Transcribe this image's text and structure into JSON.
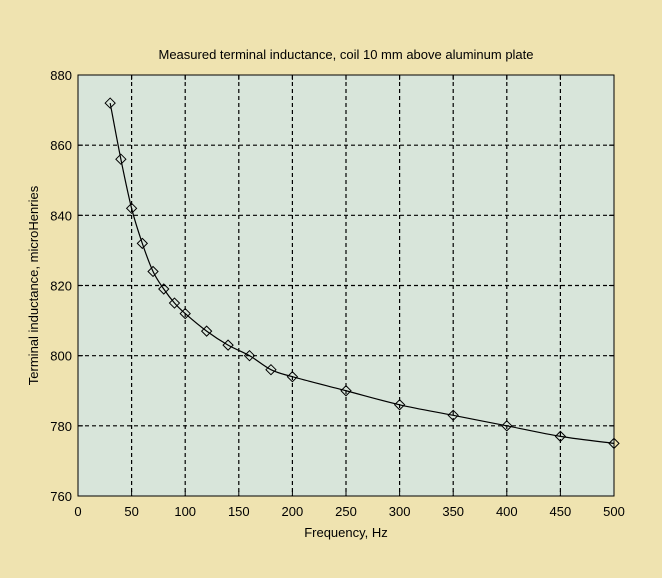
{
  "colors": {
    "figure_background": "#efe3b0",
    "plot_background": "#d8e5da",
    "line": "#000000",
    "grid": "#000000"
  },
  "chart_data": {
    "type": "line",
    "title": "Measured terminal inductance, coil 10 mm above aluminum plate",
    "xlabel": "Frequency, Hz",
    "ylabel": "Terminal inductance, microHenries",
    "xlim": [
      0,
      500
    ],
    "ylim": [
      760,
      880
    ],
    "xticks": [
      0,
      50,
      100,
      150,
      200,
      250,
      300,
      350,
      400,
      450,
      500
    ],
    "yticks": [
      760,
      780,
      800,
      820,
      840,
      860,
      880
    ],
    "grid": true,
    "grid_style": "dashed",
    "marker": "diamond",
    "series": [
      {
        "x": [
          30,
          40,
          50,
          60,
          70,
          80,
          90,
          100,
          120,
          140,
          160,
          180,
          200,
          250,
          300,
          350,
          400,
          450,
          500
        ],
        "y": [
          872,
          856,
          842,
          832,
          824,
          819,
          815,
          812,
          807,
          803,
          800,
          796,
          794,
          790,
          786,
          783,
          780,
          777,
          775
        ]
      }
    ]
  }
}
